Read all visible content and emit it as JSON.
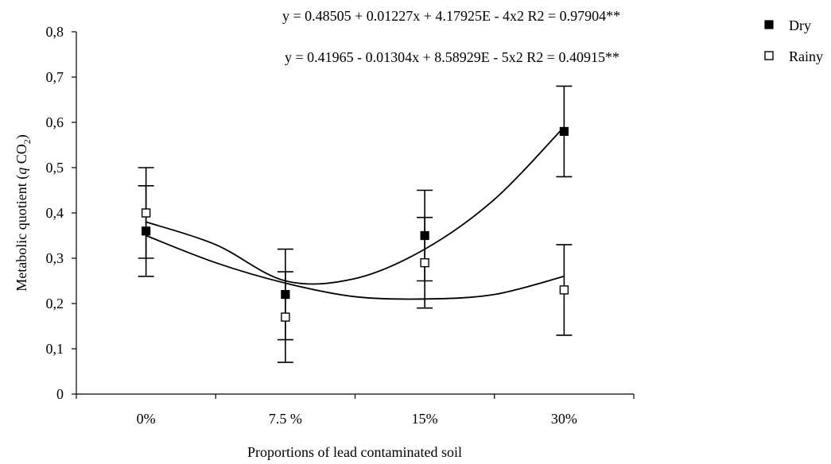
{
  "chart_data": {
    "type": "scatter",
    "categories": [
      "0%",
      "7.5 %",
      "15%",
      "30%"
    ],
    "xlabel": "Proportions of lead contaminated soil",
    "ylabel": "Metabolic quotient (q CO2)",
    "ylabel_parts": {
      "prefix": "Metabolic quotient (",
      "q": "q",
      "co": " CO",
      "sub": "2",
      "suffix": ")"
    },
    "ylim": [
      0,
      0.8
    ],
    "yticks": [
      {
        "value": 0,
        "label": "0"
      },
      {
        "value": 0.1,
        "label": "0,1"
      },
      {
        "value": 0.2,
        "label": "0,2"
      },
      {
        "value": 0.3,
        "label": "0,3"
      },
      {
        "value": 0.4,
        "label": "0,4"
      },
      {
        "value": 0.5,
        "label": "0,5"
      },
      {
        "value": 0.6,
        "label": "0,6"
      },
      {
        "value": 0.7,
        "label": "0,7"
      },
      {
        "value": 0.8,
        "label": "0,8"
      }
    ],
    "legend_position": "top-right",
    "series": [
      {
        "name": "Dry",
        "marker": "filled-square",
        "values": [
          0.36,
          0.22,
          0.35,
          0.58
        ],
        "error_low": [
          0.26,
          0.12,
          0.25,
          0.48
        ],
        "error_high": [
          0.46,
          0.32,
          0.45,
          0.68
        ],
        "fit_curve": [
          [
            0,
            0.38
          ],
          [
            0.5,
            0.33
          ],
          [
            1,
            0.25
          ],
          [
            1.5,
            0.255
          ],
          [
            2,
            0.32
          ],
          [
            2.5,
            0.43
          ],
          [
            3,
            0.59
          ]
        ],
        "equation": "y = 0.48505 + 0.01227x + 4.17925E - 4x2  R2 = 0.97904**"
      },
      {
        "name": "Rainy",
        "marker": "open-square",
        "values": [
          0.4,
          0.17,
          0.29,
          0.23
        ],
        "error_low": [
          0.3,
          0.07,
          0.19,
          0.13
        ],
        "error_high": [
          0.5,
          0.27,
          0.39,
          0.33
        ],
        "fit_curve": [
          [
            0,
            0.35
          ],
          [
            0.5,
            0.29
          ],
          [
            1,
            0.245
          ],
          [
            1.5,
            0.215
          ],
          [
            2,
            0.21
          ],
          [
            2.5,
            0.22
          ],
          [
            3,
            0.26
          ]
        ],
        "equation": "y = 0.41965 - 0.01304x + 8.58929E - 5x2  R2 = 0.40915**"
      }
    ]
  }
}
